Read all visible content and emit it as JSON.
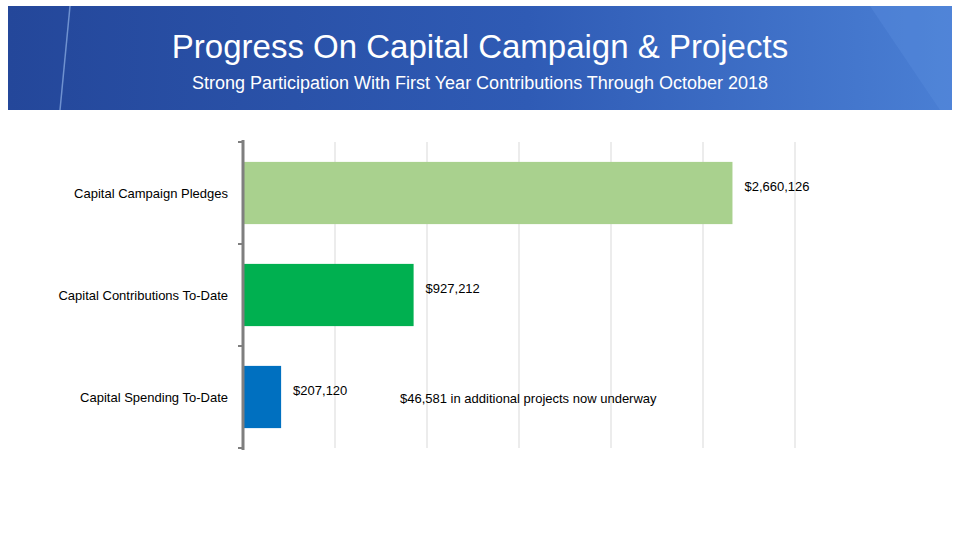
{
  "chart_data": {
    "type": "bar",
    "orientation": "horizontal",
    "title": "Progress On Capital Campaign & Projects",
    "subtitle": "Strong Participation With First Year Contributions Through October 2018",
    "categories": [
      "Capital Campaign Pledges",
      "Capital Contributions To-Date",
      "Capital Spending To-Date"
    ],
    "values": [
      2660126,
      927212,
      207120
    ],
    "value_labels": [
      "$2,660,126",
      "$927,212",
      "$207,120"
    ],
    "colors": [
      "#a9d18e",
      "#00b050",
      "#0070c0"
    ],
    "xlim": [
      0,
      3000000
    ],
    "xticks": [
      0,
      500000,
      1000000,
      1500000,
      2000000,
      2500000,
      3000000
    ],
    "grid": true,
    "data_labels": true,
    "tick_labels": false,
    "annotations": [
      "$46,581 in additional projects now underway"
    ]
  }
}
